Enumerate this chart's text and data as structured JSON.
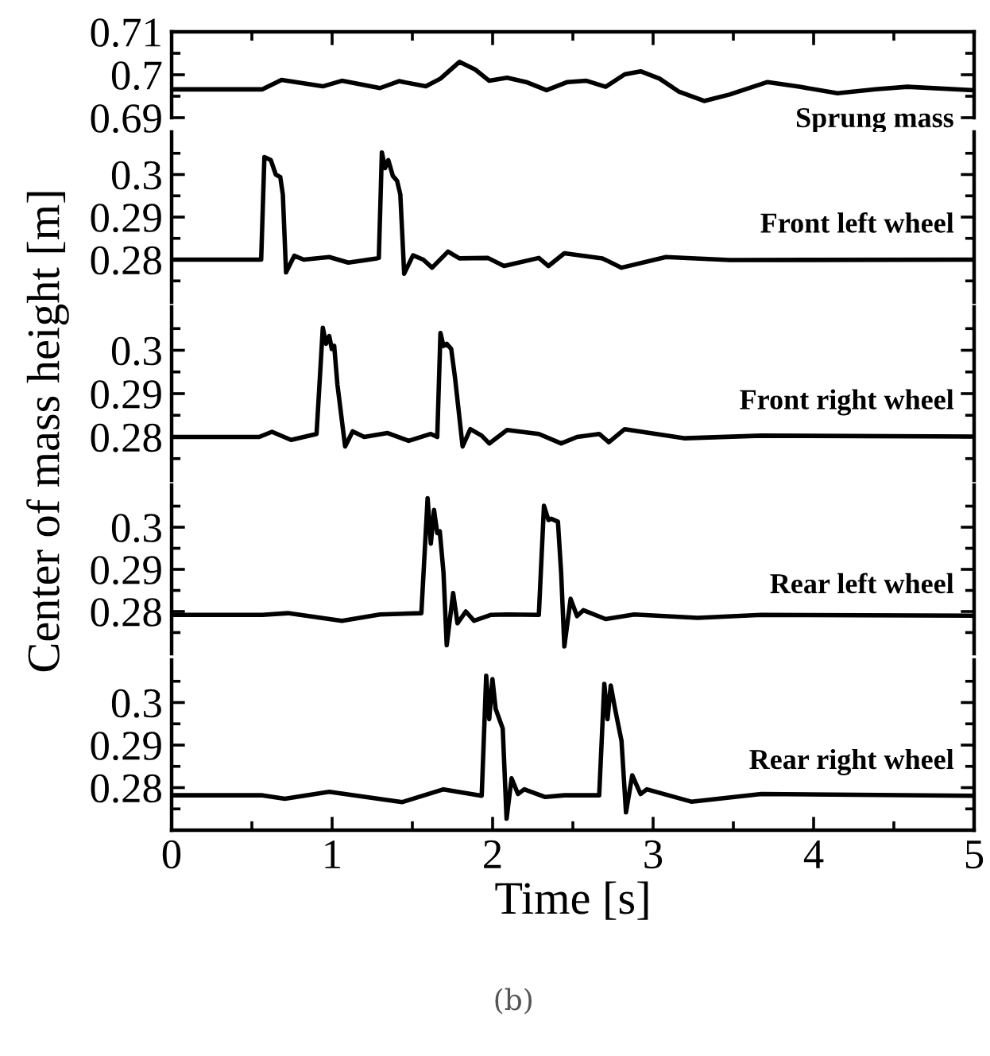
{
  "chart_data": [
    {
      "type": "line",
      "annotations": [
        "Sprung mass"
      ],
      "xlim": [
        0,
        5
      ],
      "xticks": [
        0,
        {
          "value": 0.5,
          "label": null
        },
        1,
        {
          "value": 1.5,
          "label": null
        },
        2,
        {
          "value": 2.5,
          "label": null
        },
        3,
        {
          "value": 3.5,
          "label": null
        },
        4,
        {
          "value": 4.5,
          "label": null
        },
        5
      ],
      "ylim": [
        0.69,
        0.71
      ],
      "yticks": [
        0.69,
        {
          "value": 0.695,
          "label": null
        },
        0.7,
        {
          "value": 0.705,
          "label": null
        },
        0.71
      ],
      "tick_labels": "y",
      "grid": false,
      "legend": false,
      "series": [
        {
          "color": "#000000",
          "x": [
            0,
            0.566,
            0.685,
            0.942,
            1.061,
            1.298,
            1.417,
            1.584,
            1.675,
            1.793,
            1.892,
            1.979,
            2.09,
            2.209,
            2.336,
            2.466,
            2.585,
            2.704,
            2.823,
            2.922,
            3.04,
            3.159,
            3.318,
            3.476,
            3.713,
            3.911,
            4.149,
            4.386,
            4.584,
            5.0
          ],
          "values": [
            0.6966,
            0.6966,
            0.6988,
            0.6973,
            0.6986,
            0.6969,
            0.6985,
            0.6973,
            0.6991,
            0.703,
            0.7012,
            0.6986,
            0.6993,
            0.6983,
            0.6964,
            0.6983,
            0.6986,
            0.6972,
            0.7001,
            0.7008,
            0.6991,
            0.6961,
            0.6939,
            0.6954,
            0.6983,
            0.6972,
            0.6957,
            0.6966,
            0.6972,
            0.6964
          ]
        }
      ]
    },
    {
      "type": "line",
      "annotations": [
        "Front left wheel"
      ],
      "xlim": [
        0,
        5
      ],
      "ylim": [
        0.27,
        0.31
      ],
      "yticks": [
        {
          "value": 0.275,
          "label": null
        },
        0.28,
        {
          "value": 0.285,
          "label": null
        },
        0.29,
        {
          "value": 0.295,
          "label": null
        },
        0.3,
        {
          "value": 0.305,
          "label": null
        }
      ],
      "tick_labels": "y",
      "grid": false,
      "legend": false,
      "series": [
        {
          "color": "#000000",
          "x": [
            0,
            0.546,
            0.558,
            0.578,
            0.618,
            0.649,
            0.677,
            0.693,
            0.713,
            0.764,
            0.823,
            0.982,
            1.101,
            1.279,
            1.291,
            1.31,
            1.33,
            1.35,
            1.378,
            1.405,
            1.425,
            1.449,
            1.504,
            1.568,
            1.623,
            1.722,
            1.793,
            1.971,
            2.071,
            2.288,
            2.348,
            2.447,
            2.684,
            2.803,
            3.08,
            3.476,
            5.0
          ],
          "values": [
            0.28,
            0.28,
            0.28,
            0.3041,
            0.3034,
            0.3,
            0.2994,
            0.2953,
            0.277,
            0.2809,
            0.28,
            0.2806,
            0.2793,
            0.2803,
            0.2804,
            0.3052,
            0.3015,
            0.3034,
            0.2997,
            0.2985,
            0.2953,
            0.2767,
            0.281,
            0.28,
            0.2781,
            0.2819,
            0.2803,
            0.2804,
            0.2785,
            0.2804,
            0.2785,
            0.2815,
            0.2803,
            0.2781,
            0.2806,
            0.2799,
            0.28
          ]
        }
      ]
    },
    {
      "type": "line",
      "annotations": [
        "Front right wheel"
      ],
      "ylabel": "Center of mass height [m]",
      "xlim": [
        0,
        5
      ],
      "ylim": [
        0.27,
        0.31
      ],
      "yticks": [
        {
          "value": 0.275,
          "label": null
        },
        0.28,
        {
          "value": 0.285,
          "label": null
        },
        0.29,
        {
          "value": 0.295,
          "label": null
        },
        0.3,
        {
          "value": 0.305,
          "label": null
        }
      ],
      "tick_labels": "y",
      "grid": false,
      "legend": false,
      "series": [
        {
          "color": "#000000",
          "x": [
            0,
            0.546,
            0.625,
            0.744,
            0.903,
            0.942,
            0.962,
            0.982,
            0.998,
            1.013,
            1.033,
            1.081,
            1.128,
            1.2,
            1.346,
            1.477,
            1.615,
            1.655,
            1.675,
            1.694,
            1.714,
            1.742,
            1.766,
            1.813,
            1.861,
            1.932,
            1.979,
            2.09,
            2.288,
            2.427,
            2.526,
            2.664,
            2.724,
            2.823,
            3.199,
            3.674,
            5.0
          ],
          "values": [
            0.28,
            0.28,
            0.2812,
            0.2793,
            0.2807,
            0.3052,
            0.3015,
            0.3033,
            0.3003,
            0.301,
            0.2921,
            0.2778,
            0.2813,
            0.28,
            0.2809,
            0.2791,
            0.2807,
            0.28,
            0.304,
            0.301,
            0.3015,
            0.3003,
            0.2936,
            0.2778,
            0.2818,
            0.2803,
            0.2785,
            0.2816,
            0.2807,
            0.2785,
            0.28,
            0.2807,
            0.2788,
            0.2818,
            0.2797,
            0.2803,
            0.2801
          ]
        }
      ]
    },
    {
      "type": "line",
      "annotations": [
        "Rear left wheel"
      ],
      "xlim": [
        0,
        5
      ],
      "ylim": [
        0.27,
        0.31
      ],
      "yticks": [
        {
          "value": 0.275,
          "label": null
        },
        0.28,
        {
          "value": 0.285,
          "label": null
        },
        0.29,
        {
          "value": 0.295,
          "label": null
        },
        0.3,
        {
          "value": 0.305,
          "label": null
        }
      ],
      "tick_labels": "y",
      "grid": false,
      "legend": false,
      "series": [
        {
          "color": "#000000",
          "x": [
            0,
            0.566,
            0.724,
            1.061,
            1.298,
            1.556,
            1.595,
            1.615,
            1.635,
            1.655,
            1.671,
            1.694,
            1.714,
            1.754,
            1.781,
            1.833,
            1.884,
            1.991,
            2.09,
            2.288,
            2.32,
            2.348,
            2.367,
            2.407,
            2.427,
            2.447,
            2.486,
            2.526,
            2.565,
            2.704,
            2.882,
            3.278,
            3.674,
            5.0
          ],
          "values": [
            0.2792,
            0.2792,
            0.2796,
            0.2778,
            0.2793,
            0.2796,
            0.3069,
            0.2961,
            0.3041,
            0.2986,
            0.299,
            0.2892,
            0.272,
            0.2844,
            0.2772,
            0.28,
            0.2778,
            0.2792,
            0.2793,
            0.2792,
            0.3051,
            0.3017,
            0.302,
            0.3013,
            0.2892,
            0.2717,
            0.283,
            0.2789,
            0.2803,
            0.2782,
            0.2793,
            0.2785,
            0.2792,
            0.279
          ]
        }
      ]
    },
    {
      "type": "line",
      "annotations": [
        "Rear right wheel",
        "(b)"
      ],
      "xlabel": "Time [s]",
      "xlim": [
        0,
        5
      ],
      "xticks": [
        0,
        {
          "value": 0.5,
          "label": null
        },
        1,
        {
          "value": 1.5,
          "label": null
        },
        2,
        {
          "value": 2.5,
          "label": null
        },
        3,
        {
          "value": 3.5,
          "label": null
        },
        4,
        {
          "value": 4.5,
          "label": null
        },
        5
      ],
      "ylim": [
        0.27,
        0.31
      ],
      "yticks": [
        {
          "value": 0.275,
          "label": null
        },
        0.28,
        {
          "value": 0.285,
          "label": null
        },
        0.29,
        {
          "value": 0.295,
          "label": null
        },
        0.3,
        {
          "value": 0.305,
          "label": null
        }
      ],
      "grid": false,
      "legend": false,
      "series": [
        {
          "color": "#000000",
          "x": [
            0,
            0.566,
            0.705,
            0.982,
            1.437,
            1.694,
            1.932,
            1.96,
            1.979,
            1.999,
            2.019,
            2.063,
            2.087,
            2.118,
            2.158,
            2.197,
            2.328,
            2.447,
            2.664,
            2.696,
            2.716,
            2.736,
            2.763,
            2.803,
            2.831,
            2.87,
            2.922,
            2.961,
            3.238,
            3.674,
            5.0
          ],
          "values": [
            0.2782,
            0.2782,
            0.2774,
            0.279,
            0.2766,
            0.2796,
            0.2781,
            0.3063,
            0.2961,
            0.3055,
            0.2985,
            0.2939,
            0.2727,
            0.2822,
            0.2785,
            0.2796,
            0.2778,
            0.2782,
            0.2782,
            0.3044,
            0.2961,
            0.304,
            0.2985,
            0.291,
            0.2742,
            0.2829,
            0.2785,
            0.2796,
            0.2767,
            0.2785,
            0.2781
          ]
        }
      ]
    }
  ]
}
